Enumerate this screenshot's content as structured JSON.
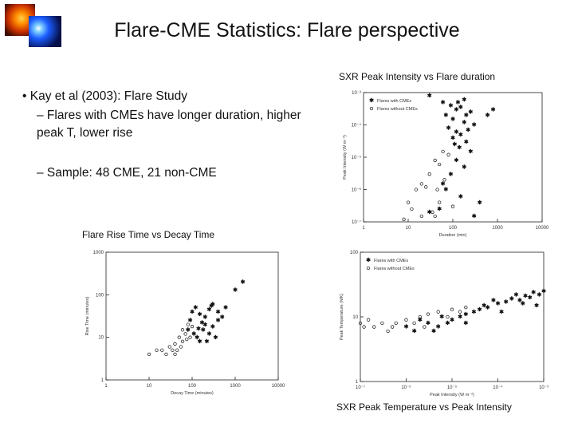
{
  "title": "Flare-CME Statistics: Flare perspective",
  "thumbnails": [
    "solar-flare-image",
    "coronagraph-image"
  ],
  "bullets": {
    "main": "• Kay et al (2003): Flare Study",
    "sub1": "– Flares with CMEs have longer duration, higher peak T, lower rise",
    "sub2": "– Sample: 48 CME, 21 non-CME"
  },
  "captions": {
    "top_right": "SXR Peak Intensity vs Flare duration",
    "bottom_left": "Flare Rise Time vs Decay Time",
    "bottom_right": "SXR Peak Temperature vs Peak Intensity"
  },
  "chart_data": [
    {
      "id": "intensity_vs_duration",
      "type": "scatter",
      "xlabel": "Duration (min)",
      "ylabel": "Peak Intensity (W m⁻²)",
      "xscale": "log",
      "yscale": "log",
      "xlim": [
        1,
        10000
      ],
      "ylim": [
        1e-07,
        0.001
      ],
      "xticks": [
        "1",
        "10",
        "100",
        "1000",
        "10000"
      ],
      "yticks": [
        "10⁻⁷",
        "10⁻⁶",
        "10⁻⁵",
        "10⁻⁴",
        "10⁻³"
      ],
      "legend": [
        "Flares with CMEs",
        "Flares without CMEs"
      ],
      "legend_position": "top-left",
      "series": [
        {
          "name": "Flares with CMEs",
          "marker": "star",
          "points": [
            [
              30,
              0.0008
            ],
            [
              60,
              0.0005
            ],
            [
              90,
              0.0004
            ],
            [
              120,
              0.0003
            ],
            [
              150,
              0.00035
            ],
            [
              200,
              0.0002
            ],
            [
              250,
              0.00025
            ],
            [
              100,
              0.00015
            ],
            [
              180,
              0.00012
            ],
            [
              300,
              0.0001
            ],
            [
              600,
              0.0002
            ],
            [
              80,
              8e-05
            ],
            [
              120,
              6e-05
            ],
            [
              150,
              5e-05
            ],
            [
              200,
              3e-05
            ],
            [
              110,
              2.5e-05
            ],
            [
              140,
              2e-05
            ],
            [
              250,
              1.5e-05
            ],
            [
              120,
              8e-06
            ],
            [
              180,
              5e-06
            ],
            [
              90,
              3e-06
            ],
            [
              60,
              1.5e-06
            ],
            [
              70,
              1e-06
            ],
            [
              150,
              6e-07
            ],
            [
              30,
              2e-07
            ],
            [
              50,
              2.5e-07
            ],
            [
              400,
              4e-07
            ],
            [
              300,
              1.5e-07
            ],
            [
              800,
              0.0003
            ],
            [
              100,
              4e-05
            ],
            [
              220,
              7e-05
            ],
            [
              180,
              0.0006
            ],
            [
              130,
              0.0005
            ],
            [
              70,
              0.0002
            ]
          ]
        },
        {
          "name": "Flares without CMEs",
          "marker": "diamond",
          "points": [
            [
              40,
              8e-06
            ],
            [
              50,
              6e-06
            ],
            [
              30,
              3e-06
            ],
            [
              20,
              1.5e-06
            ],
            [
              15,
              1e-06
            ],
            [
              25,
              1.2e-06
            ],
            [
              10,
              4e-07
            ],
            [
              12,
              2.5e-07
            ],
            [
              8,
              1.2e-07
            ],
            [
              20,
              1.5e-07
            ],
            [
              35,
              2e-07
            ],
            [
              45,
              1e-06
            ],
            [
              60,
              1.5e-05
            ],
            [
              80,
              1.2e-05
            ],
            [
              50,
              4e-07
            ],
            [
              100,
              3e-07
            ],
            [
              65,
              2e-06
            ],
            [
              40,
              1.5e-07
            ]
          ]
        }
      ]
    },
    {
      "id": "rise_vs_decay",
      "type": "scatter",
      "xlabel": "Decay Time (minutes)",
      "ylabel": "Rise Time (minutes)",
      "xscale": "log",
      "yscale": "log",
      "xlim": [
        1,
        10000
      ],
      "ylim": [
        1,
        1000
      ],
      "xticks": [
        "1",
        "10",
        "100",
        "1000",
        "10000"
      ],
      "yticks": [
        "1",
        "10",
        "100",
        "1000"
      ],
      "series": [
        {
          "name": "Flares with CMEs",
          "marker": "star",
          "points": [
            [
              1500,
              200
            ],
            [
              1000,
              130
            ],
            [
              600,
              50
            ],
            [
              400,
              40
            ],
            [
              300,
              60
            ],
            [
              250,
              45
            ],
            [
              200,
              30
            ],
            [
              150,
              35
            ],
            [
              120,
              50
            ],
            [
              100,
              40
            ],
            [
              200,
              20
            ],
            [
              180,
              15
            ],
            [
              250,
              12
            ],
            [
              300,
              18
            ],
            [
              400,
              25
            ],
            [
              350,
              10
            ],
            [
              220,
              8
            ],
            [
              130,
              10
            ],
            [
              90,
              25
            ],
            [
              80,
              15
            ],
            [
              150,
              8
            ],
            [
              110,
              12
            ],
            [
              500,
              30
            ],
            [
              280,
              55
            ],
            [
              170,
              22
            ],
            [
              140,
              16
            ]
          ]
        },
        {
          "name": "Flares without CMEs",
          "marker": "diamond",
          "points": [
            [
              10,
              4
            ],
            [
              15,
              5
            ],
            [
              20,
              5
            ],
            [
              25,
              4
            ],
            [
              30,
              6
            ],
            [
              40,
              7
            ],
            [
              50,
              10
            ],
            [
              60,
              8
            ],
            [
              45,
              5
            ],
            [
              35,
              5
            ],
            [
              70,
              12
            ],
            [
              80,
              20
            ],
            [
              60,
              15
            ],
            [
              100,
              18
            ],
            [
              90,
              10
            ],
            [
              55,
              6
            ],
            [
              75,
              9
            ],
            [
              40,
              4
            ]
          ]
        }
      ]
    },
    {
      "id": "temperature_vs_intensity",
      "type": "scatter",
      "xlabel": "Peak Intensity (W m⁻²)",
      "ylabel": "Peak Temperature (MK)",
      "xscale": "log",
      "yscale": "log",
      "xlim": [
        1e-07,
        0.001
      ],
      "ylim": [
        1,
        100
      ],
      "xticks": [
        "10⁻⁷",
        "10⁻⁶",
        "10⁻⁵",
        "10⁻⁴",
        "10⁻³"
      ],
      "yticks": [
        "1",
        "10",
        "100"
      ],
      "legend": [
        "Flares with CMEs",
        "Flares without CMEs"
      ],
      "legend_position": "top-left",
      "series": [
        {
          "name": "Flares with CMEs",
          "marker": "star",
          "points": [
            [
              0.001,
              25
            ],
            [
              0.0008,
              22
            ],
            [
              0.0006,
              24
            ],
            [
              0.0005,
              20
            ],
            [
              0.0004,
              21
            ],
            [
              0.0003,
              18
            ],
            [
              0.00025,
              22
            ],
            [
              0.0002,
              19
            ],
            [
              0.00015,
              17
            ],
            [
              0.0001,
              16
            ],
            [
              8e-05,
              18
            ],
            [
              6e-05,
              14
            ],
            [
              5e-05,
              15
            ],
            [
              4e-05,
              13
            ],
            [
              3e-05,
              12
            ],
            [
              2e-05,
              11
            ],
            [
              1.5e-05,
              10
            ],
            [
              1e-05,
              9
            ],
            [
              8e-06,
              8
            ],
            [
              6e-06,
              10
            ],
            [
              5e-06,
              7
            ],
            [
              4e-06,
              6
            ],
            [
              3e-06,
              8
            ],
            [
              2e-06,
              9
            ],
            [
              1.5e-06,
              6
            ],
            [
              1e-06,
              7
            ],
            [
              0.0007,
              15
            ],
            [
              0.00035,
              16
            ],
            [
              0.00012,
              12
            ],
            [
              2e-05,
              8
            ]
          ]
        },
        {
          "name": "Flares without CMEs",
          "marker": "diamond",
          "points": [
            [
              1e-07,
              8
            ],
            [
              1.2e-07,
              7
            ],
            [
              1.5e-07,
              9
            ],
            [
              2e-07,
              7
            ],
            [
              3e-07,
              8
            ],
            [
              5e-07,
              7
            ],
            [
              1e-06,
              9
            ],
            [
              1.5e-06,
              8
            ],
            [
              2e-06,
              10
            ],
            [
              3e-06,
              11
            ],
            [
              5e-06,
              12
            ],
            [
              8e-06,
              10
            ],
            [
              1e-05,
              13
            ],
            [
              1.5e-05,
              12
            ],
            [
              2e-05,
              14
            ],
            [
              4e-07,
              6
            ],
            [
              2.5e-06,
              7
            ],
            [
              6e-07,
              8
            ]
          ]
        }
      ]
    }
  ]
}
